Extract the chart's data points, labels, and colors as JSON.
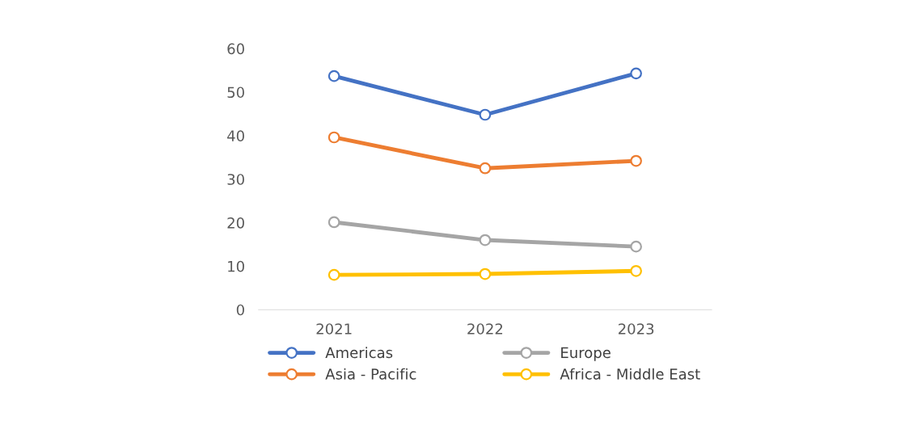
{
  "chart_data": {
    "type": "line",
    "categories": [
      "2021",
      "2022",
      "2023"
    ],
    "series": [
      {
        "name": "Americas",
        "color": "#4472c4",
        "values": [
          53.7,
          44.8,
          54.3
        ]
      },
      {
        "name": "Asia - Pacific",
        "color": "#ed7d31",
        "values": [
          39.6,
          32.5,
          34.2
        ]
      },
      {
        "name": "Europe",
        "color": "#a5a5a5",
        "values": [
          20.1,
          16.0,
          14.5
        ]
      },
      {
        "name": "Africa - Middle East",
        "color": "#ffc000",
        "values": [
          8.0,
          8.2,
          8.9
        ]
      }
    ],
    "ylim": [
      0,
      60
    ],
    "yticks": [
      0,
      10,
      20,
      30,
      40,
      50,
      60
    ],
    "grid": false,
    "legend": "bottom",
    "marker": "circle",
    "line_style": "solid"
  }
}
